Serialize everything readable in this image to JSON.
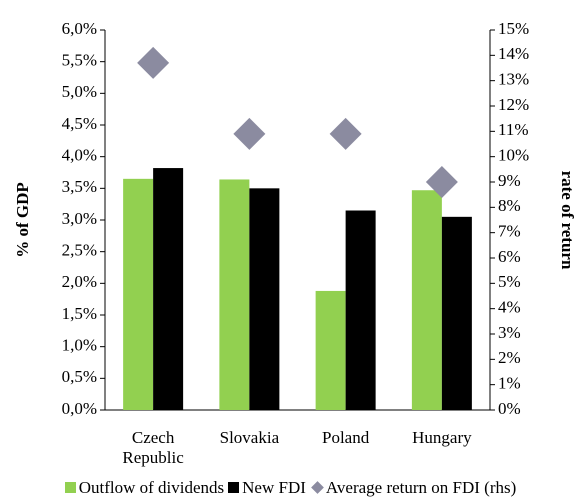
{
  "chart_data": {
    "type": "bar",
    "ylabel": "% of GDP",
    "y2label": "rate of return",
    "categories": [
      "Czech Republic",
      "Slovakia",
      "Poland",
      "Hungary"
    ],
    "series": [
      {
        "name": "Outflow of dividends",
        "color": "#92d050",
        "values": [
          3.65,
          3.64,
          1.88,
          3.47
        ]
      },
      {
        "name": "New FDI",
        "color": "#000000",
        "values": [
          3.82,
          3.5,
          3.15,
          3.05
        ]
      },
      {
        "name": "Average return on FDI (rhs)",
        "color": "#8b8ba0",
        "axis": "y2",
        "marker": "diamond",
        "values": [
          13.7,
          10.9,
          10.9,
          9.0
        ]
      }
    ],
    "ylim": [
      0,
      6
    ],
    "yticks": [
      {
        "value": 0,
        "label": "0,0%"
      },
      {
        "value": 0.5,
        "label": "0,5%"
      },
      {
        "value": 1,
        "label": "1,0%"
      },
      {
        "value": 1.5,
        "label": "1,5%"
      },
      {
        "value": 2,
        "label": "2,0%"
      },
      {
        "value": 2.5,
        "label": "2,5%"
      },
      {
        "value": 3,
        "label": "3,0%"
      },
      {
        "value": 3.5,
        "label": "3,5%"
      },
      {
        "value": 4,
        "label": "4,0%"
      },
      {
        "value": 4.5,
        "label": "4,5%"
      },
      {
        "value": 5,
        "label": "5,0%"
      },
      {
        "value": 5.5,
        "label": "5,5%"
      },
      {
        "value": 6,
        "label": "6,0%"
      }
    ],
    "y2lim": [
      0,
      15
    ],
    "y2ticks": [
      {
        "value": 0,
        "label": "0%"
      },
      {
        "value": 1,
        "label": "1%"
      },
      {
        "value": 2,
        "label": "2%"
      },
      {
        "value": 3,
        "label": "3%"
      },
      {
        "value": 4,
        "label": "4%"
      },
      {
        "value": 5,
        "label": "5%"
      },
      {
        "value": 6,
        "label": "6%"
      },
      {
        "value": 7,
        "label": "7%"
      },
      {
        "value": 8,
        "label": "8%"
      },
      {
        "value": 9,
        "label": "9%"
      },
      {
        "value": 10,
        "label": "10%"
      },
      {
        "value": 11,
        "label": "11%"
      },
      {
        "value": 12,
        "label": "12%"
      },
      {
        "value": 13,
        "label": "13%"
      },
      {
        "value": 14,
        "label": "14%"
      },
      {
        "value": 15,
        "label": "15%"
      }
    ]
  }
}
